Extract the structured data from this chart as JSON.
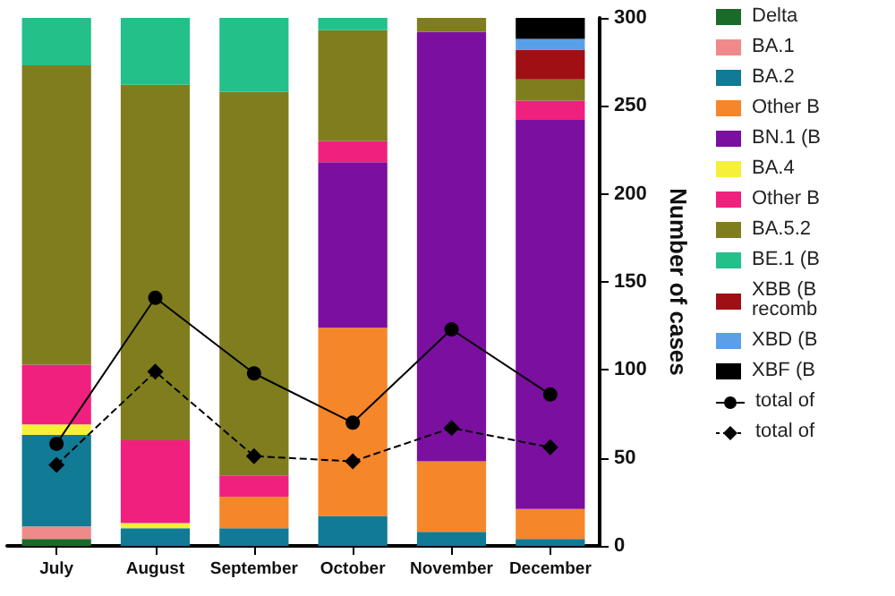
{
  "chart_data": {
    "type": "bar",
    "stacked": true,
    "categories": [
      "July",
      "August",
      "September",
      "October",
      "November",
      "December"
    ],
    "y2label": "Number of cases",
    "y2lim": [
      0,
      300
    ],
    "y2ticks": [
      0,
      50,
      100,
      150,
      200,
      250,
      300
    ],
    "legend": "right",
    "grid": false,
    "series": [
      {
        "name": "Delta",
        "color": "#1a6b2a",
        "axis": "y2",
        "values": [
          4,
          0,
          0,
          0,
          0,
          0
        ]
      },
      {
        "name": "BA.1",
        "color": "#f08a8a",
        "axis": "y2",
        "values": [
          7,
          0,
          0,
          0,
          0,
          0
        ]
      },
      {
        "name": "BA.2",
        "color": "#117a95",
        "axis": "y2",
        "values": [
          52,
          10,
          10,
          17,
          8,
          4
        ]
      },
      {
        "name": "Other B",
        "color": "#f5862a",
        "axis": "y2",
        "values": [
          0,
          0,
          18,
          107,
          40,
          17
        ]
      },
      {
        "name": "BN.1 (B",
        "color": "#7a0fa0",
        "axis": "y2",
        "values": [
          0,
          0,
          0,
          94,
          244,
          221
        ]
      },
      {
        "name": "BA.4",
        "color": "#f7f03a",
        "axis": "y2",
        "values": [
          6,
          3,
          0,
          0,
          0,
          0
        ]
      },
      {
        "name": "Other B",
        "color": "#f0207f",
        "axis": "y2",
        "values": [
          34,
          47,
          12,
          12,
          0,
          11
        ]
      },
      {
        "name": "BA.5.2",
        "color": "#7f7d1e",
        "axis": "y2",
        "values": [
          170,
          202,
          218,
          63,
          8,
          12
        ]
      },
      {
        "name": "BE.1 (B",
        "color": "#23c08a",
        "axis": "y2",
        "values": [
          27,
          38,
          42,
          7,
          0,
          0
        ]
      },
      {
        "name": "XBB (B recomb",
        "color": "#a00f14",
        "axis": "y2",
        "values": [
          0,
          0,
          0,
          0,
          0,
          17
        ]
      },
      {
        "name": "XBD (B",
        "color": "#5aa0e8",
        "axis": "y2",
        "values": [
          0,
          0,
          0,
          0,
          0,
          6
        ]
      },
      {
        "name": "XBF (B",
        "color": "#000000",
        "axis": "y2",
        "values": [
          0,
          0,
          0,
          0,
          0,
          12
        ]
      },
      {
        "name": "total of",
        "type": "line",
        "axis": "y2",
        "color": "#000000",
        "marker": "circle",
        "line_style": "solid",
        "values": [
          58,
          141,
          98,
          70,
          123,
          86
        ]
      },
      {
        "name": "total of",
        "type": "line",
        "axis": "y2",
        "color": "#000000",
        "marker": "diamond",
        "line_style": "dashed",
        "values": [
          46,
          99,
          51,
          48,
          67,
          56
        ]
      }
    ]
  }
}
